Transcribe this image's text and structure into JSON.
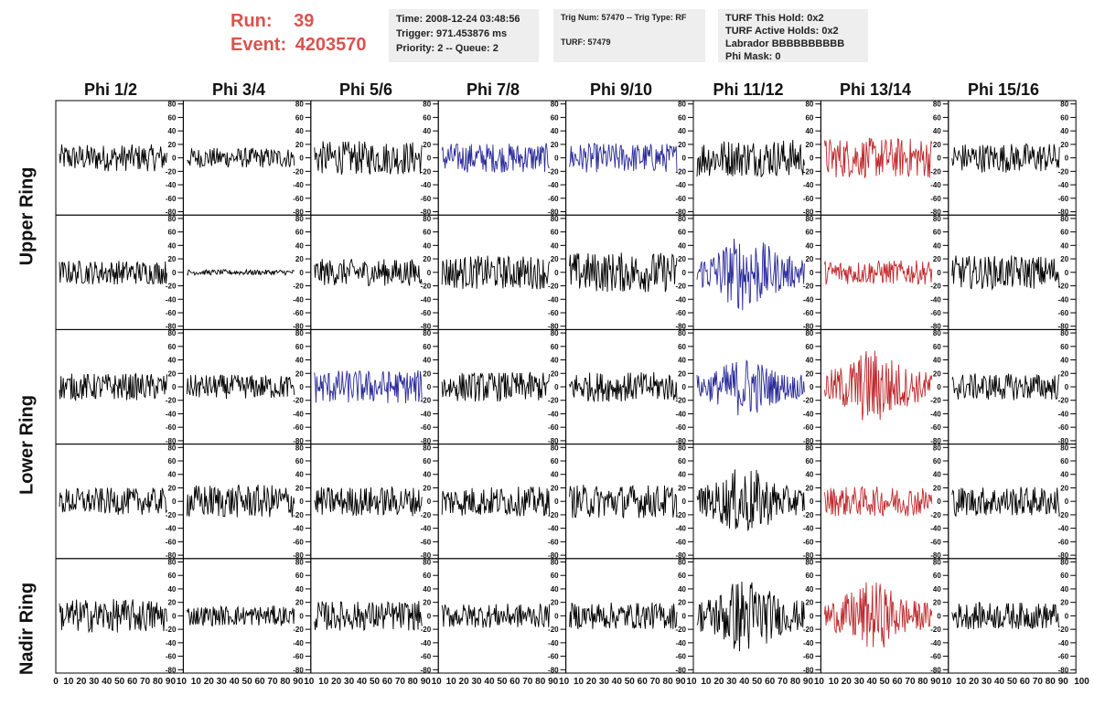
{
  "header": {
    "run_label": "Run:",
    "run_value": "39",
    "event_label": "Event:",
    "event_value": "4203570",
    "time_line": "Time: 2008-12-24 03:48:56",
    "trigger_line": "Trigger: 971.453876 ms",
    "priority_line": "Priority: 2 -- Queue: 2",
    "trig_line": "Trig Num: 57470 -- Trig Type: RF",
    "turf_line": "TURF: 57479",
    "turf_hold_line": "TURF This Hold: 0x2",
    "turf_active_line": "TURF Active Holds: 0x2",
    "labrador_line": "Labrador BBBBBBBBBB",
    "phimask_line": "Phi Mask: 0"
  },
  "columns": [
    "Phi 1/2",
    "Phi 3/4",
    "Phi 5/6",
    "Phi 7/8",
    "Phi 9/10",
    "Phi 11/12",
    "Phi 13/14",
    "Phi 15/16"
  ],
  "rings": [
    "Upper Ring",
    "Lower Ring",
    "Nadir Ring"
  ],
  "colors": {
    "default": "#000000",
    "blue": "#2a2a9a",
    "red": "#c0282c"
  },
  "chart_data": {
    "type": "line",
    "rows": 5,
    "cols": 8,
    "ylim": [
      -85,
      85
    ],
    "xlim": [
      0,
      100
    ],
    "yticks": [
      80,
      60,
      40,
      20,
      0,
      -20,
      -40,
      -60,
      -80
    ],
    "xticks": [
      0,
      10,
      20,
      30,
      40,
      50,
      60,
      70,
      80,
      90
    ],
    "x_end_label": "100",
    "amplitudes": [
      [
        20,
        15,
        25,
        22,
        22,
        28,
        30,
        22
      ],
      [
        18,
        4,
        20,
        25,
        30,
        45,
        18,
        25
      ],
      [
        20,
        18,
        25,
        22,
        22,
        35,
        45,
        20
      ],
      [
        20,
        25,
        22,
        22,
        25,
        40,
        22,
        22
      ],
      [
        25,
        15,
        22,
        18,
        20,
        45,
        40,
        20
      ]
    ],
    "trace_colors": [
      [
        "default",
        "default",
        "default",
        "blue",
        "blue",
        "default",
        "red",
        "default"
      ],
      [
        "default",
        "default",
        "default",
        "default",
        "default",
        "blue",
        "red",
        "default"
      ],
      [
        "default",
        "default",
        "blue",
        "default",
        "default",
        "blue",
        "red",
        "default"
      ],
      [
        "default",
        "default",
        "default",
        "default",
        "default",
        "default",
        "red",
        "default"
      ],
      [
        "default",
        "default",
        "default",
        "default",
        "default",
        "default",
        "red",
        "default"
      ]
    ]
  }
}
